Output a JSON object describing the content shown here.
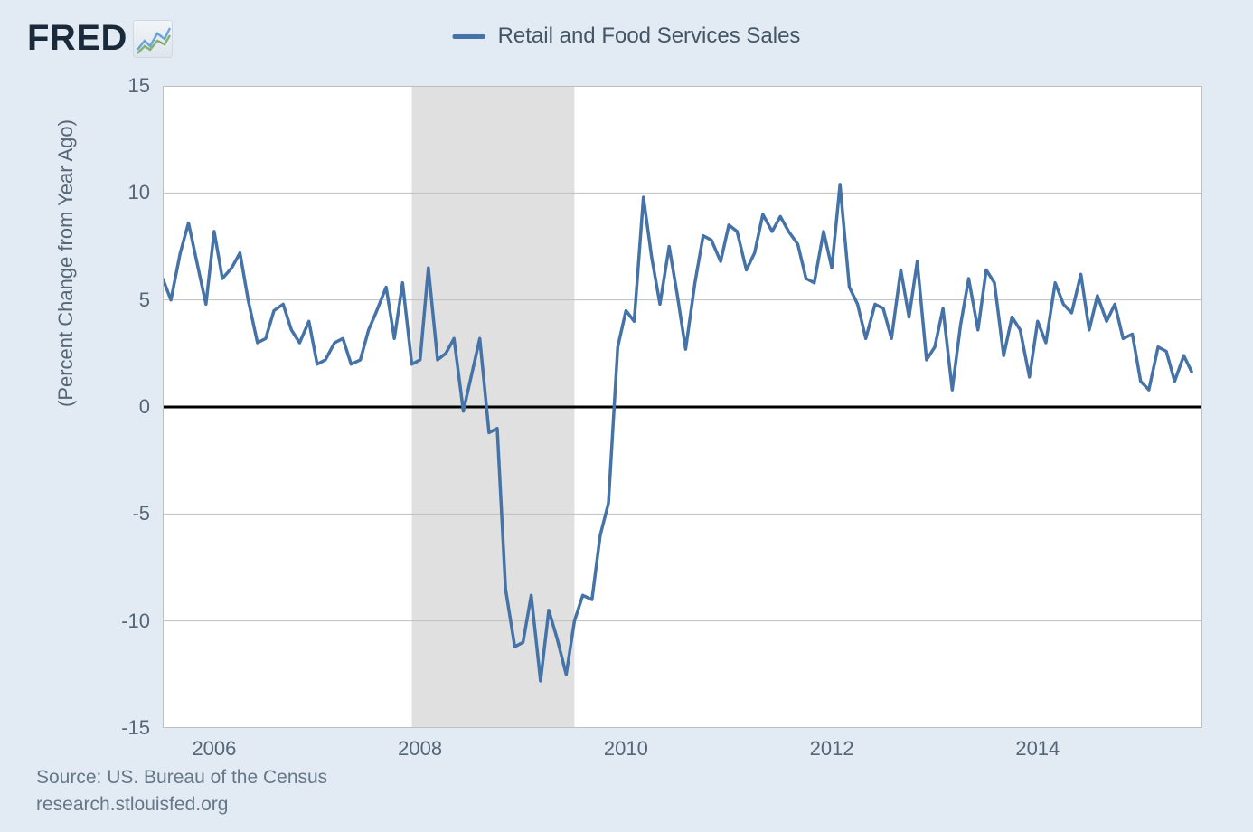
{
  "logo_text": "FRED",
  "legend_label": "Retail and Food Services Sales",
  "y_axis_label": "(Percent Change from Year Ago)",
  "source_line": "Source: US. Bureau of the Census",
  "site_line": "research.stlouisfed.org",
  "chart": {
    "type": "line",
    "background_color": "#e2ebf3",
    "plot_bg_color": "#ffffff",
    "grid_color": "#bfbfbf",
    "zero_line_color": "#000000",
    "zero_line_width": 3,
    "series_color": "#4573a7",
    "series_width": 3.5,
    "recession_band_color": "#e0e0e0",
    "recession_start_x": 2007.92,
    "recession_end_x": 2009.5,
    "x_domain": [
      2005.5,
      2015.6
    ],
    "y_domain": [
      -15,
      15
    ],
    "y_ticks": [
      -15,
      -10,
      -5,
      0,
      5,
      10,
      15
    ],
    "x_ticks": [
      2006,
      2008,
      2010,
      2012,
      2014
    ],
    "x_tick_labels": [
      "2006",
      "2008",
      "2010",
      "2012",
      "2014"
    ],
    "y_tick_labels": [
      "-15",
      "-10",
      "-5",
      "0",
      "5",
      "10",
      "15"
    ],
    "label_fontsize": 22,
    "axis_label_fontsize": 22,
    "legend_fontsize": 24,
    "data": [
      [
        2005.5,
        6.0
      ],
      [
        2005.58,
        5.0
      ],
      [
        2005.67,
        7.2
      ],
      [
        2005.75,
        8.6
      ],
      [
        2005.83,
        6.8
      ],
      [
        2005.92,
        4.8
      ],
      [
        2006.0,
        8.2
      ],
      [
        2006.08,
        6.0
      ],
      [
        2006.17,
        6.5
      ],
      [
        2006.25,
        7.2
      ],
      [
        2006.33,
        5.0
      ],
      [
        2006.42,
        3.0
      ],
      [
        2006.5,
        3.2
      ],
      [
        2006.58,
        4.5
      ],
      [
        2006.67,
        4.8
      ],
      [
        2006.75,
        3.6
      ],
      [
        2006.83,
        3.0
      ],
      [
        2006.92,
        4.0
      ],
      [
        2007.0,
        2.0
      ],
      [
        2007.08,
        2.2
      ],
      [
        2007.17,
        3.0
      ],
      [
        2007.25,
        3.2
      ],
      [
        2007.33,
        2.0
      ],
      [
        2007.42,
        2.2
      ],
      [
        2007.5,
        3.6
      ],
      [
        2007.58,
        4.5
      ],
      [
        2007.67,
        5.6
      ],
      [
        2007.75,
        3.2
      ],
      [
        2007.83,
        5.8
      ],
      [
        2007.92,
        2.0
      ],
      [
        2008.0,
        2.2
      ],
      [
        2008.08,
        6.5
      ],
      [
        2008.17,
        2.2
      ],
      [
        2008.25,
        2.5
      ],
      [
        2008.33,
        3.2
      ],
      [
        2008.42,
        -0.2
      ],
      [
        2008.5,
        1.5
      ],
      [
        2008.58,
        3.2
      ],
      [
        2008.67,
        -1.2
      ],
      [
        2008.75,
        -1.0
      ],
      [
        2008.83,
        -8.5
      ],
      [
        2008.92,
        -11.2
      ],
      [
        2009.0,
        -11.0
      ],
      [
        2009.08,
        -8.8
      ],
      [
        2009.17,
        -12.8
      ],
      [
        2009.25,
        -9.5
      ],
      [
        2009.33,
        -10.8
      ],
      [
        2009.42,
        -12.5
      ],
      [
        2009.5,
        -10.0
      ],
      [
        2009.58,
        -8.8
      ],
      [
        2009.67,
        -9.0
      ],
      [
        2009.75,
        -6.0
      ],
      [
        2009.83,
        -4.5
      ],
      [
        2009.92,
        2.8
      ],
      [
        2010.0,
        4.5
      ],
      [
        2010.08,
        4.0
      ],
      [
        2010.17,
        9.8
      ],
      [
        2010.25,
        7.0
      ],
      [
        2010.33,
        4.8
      ],
      [
        2010.42,
        7.5
      ],
      [
        2010.5,
        5.2
      ],
      [
        2010.58,
        2.7
      ],
      [
        2010.67,
        5.8
      ],
      [
        2010.75,
        8.0
      ],
      [
        2010.83,
        7.8
      ],
      [
        2010.92,
        6.8
      ],
      [
        2011.0,
        8.5
      ],
      [
        2011.08,
        8.2
      ],
      [
        2011.17,
        6.4
      ],
      [
        2011.25,
        7.2
      ],
      [
        2011.33,
        9.0
      ],
      [
        2011.42,
        8.2
      ],
      [
        2011.5,
        8.9
      ],
      [
        2011.58,
        8.2
      ],
      [
        2011.67,
        7.6
      ],
      [
        2011.75,
        6.0
      ],
      [
        2011.83,
        5.8
      ],
      [
        2011.92,
        8.2
      ],
      [
        2012.0,
        6.5
      ],
      [
        2012.08,
        10.4
      ],
      [
        2012.17,
        5.6
      ],
      [
        2012.25,
        4.8
      ],
      [
        2012.33,
        3.2
      ],
      [
        2012.42,
        4.8
      ],
      [
        2012.5,
        4.6
      ],
      [
        2012.58,
        3.2
      ],
      [
        2012.67,
        6.4
      ],
      [
        2012.75,
        4.2
      ],
      [
        2012.83,
        6.8
      ],
      [
        2012.92,
        2.2
      ],
      [
        2013.0,
        2.8
      ],
      [
        2013.08,
        4.6
      ],
      [
        2013.17,
        0.8
      ],
      [
        2013.25,
        3.8
      ],
      [
        2013.33,
        6.0
      ],
      [
        2013.42,
        3.6
      ],
      [
        2013.5,
        6.4
      ],
      [
        2013.58,
        5.8
      ],
      [
        2013.67,
        2.4
      ],
      [
        2013.75,
        4.2
      ],
      [
        2013.83,
        3.6
      ],
      [
        2013.92,
        1.4
      ],
      [
        2014.0,
        4.0
      ],
      [
        2014.08,
        3.0
      ],
      [
        2014.17,
        5.8
      ],
      [
        2014.25,
        4.8
      ],
      [
        2014.33,
        4.4
      ],
      [
        2014.42,
        6.2
      ],
      [
        2014.5,
        3.6
      ],
      [
        2014.58,
        5.2
      ],
      [
        2014.67,
        4.0
      ],
      [
        2014.75,
        4.8
      ],
      [
        2014.83,
        3.2
      ],
      [
        2014.92,
        3.4
      ],
      [
        2015.0,
        1.2
      ],
      [
        2015.08,
        0.8
      ],
      [
        2015.17,
        2.8
      ],
      [
        2015.25,
        2.6
      ],
      [
        2015.33,
        1.2
      ],
      [
        2015.42,
        2.4
      ],
      [
        2015.5,
        1.6
      ]
    ]
  }
}
